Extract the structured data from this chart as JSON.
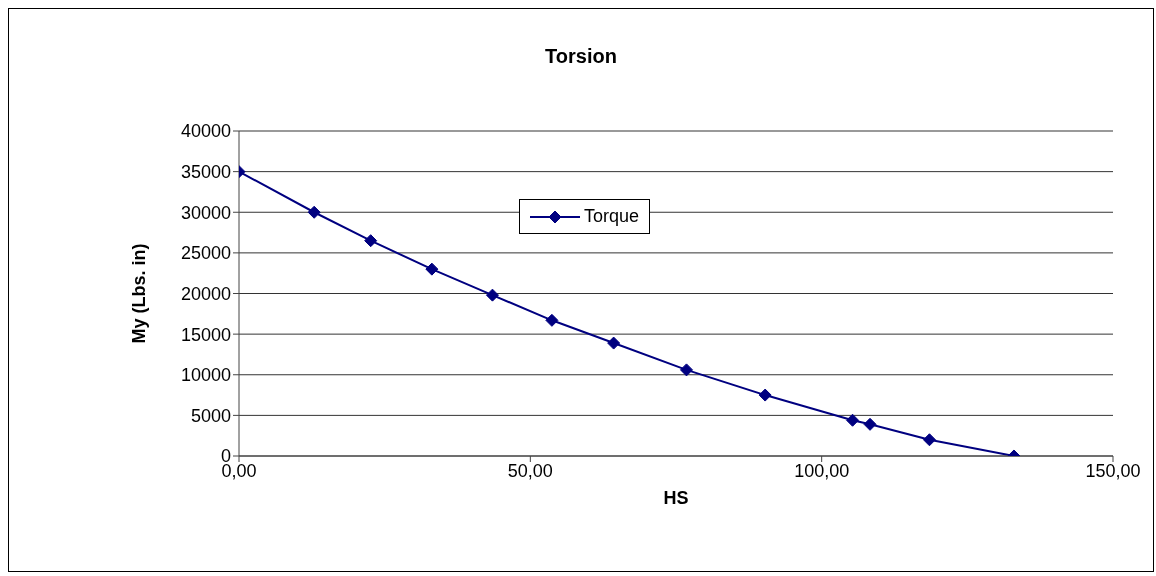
{
  "chart_data": {
    "type": "line",
    "title": "Torsion",
    "xlabel": "HS",
    "ylabel": "My (Lbs. in)",
    "x": [
      0,
      12.9,
      22.6,
      33.1,
      43.5,
      53.7,
      64.3,
      76.8,
      90.3,
      105.3,
      108.3,
      118.5,
      133
    ],
    "series": [
      {
        "name": "Torque",
        "color": "#000080",
        "values": [
          35000,
          30000,
          26500,
          23000,
          19800,
          16700,
          13900,
          10600,
          7500,
          4400,
          3900,
          2000,
          0
        ]
      }
    ],
    "xlim": [
      0,
      150
    ],
    "xticks": [
      {
        "value": 0,
        "label": "0,00"
      },
      {
        "value": 50,
        "label": "50,00"
      },
      {
        "value": 100,
        "label": "100,00"
      },
      {
        "value": 150,
        "label": "150,00"
      }
    ],
    "ylim": [
      0,
      40000
    ],
    "yticks": [
      0,
      5000,
      10000,
      15000,
      20000,
      25000,
      30000,
      35000,
      40000
    ],
    "grid": "y",
    "legend": "top",
    "marker": "diamond",
    "line_style": "solid"
  }
}
